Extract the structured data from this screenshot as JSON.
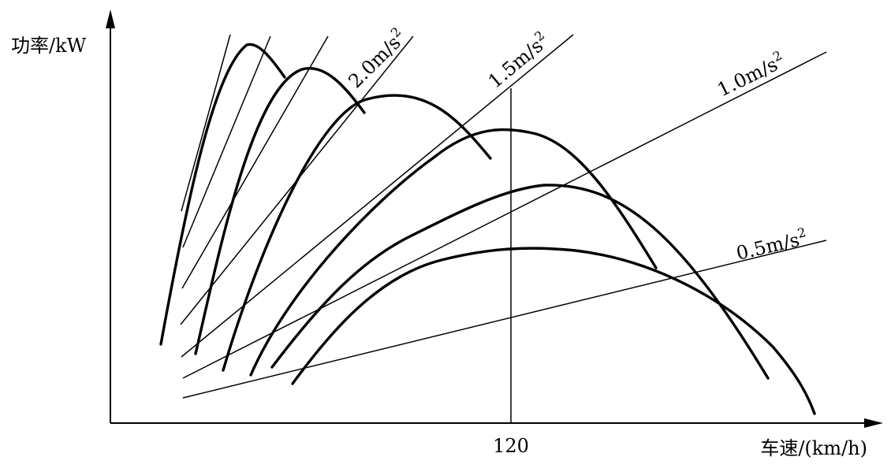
{
  "chart_data": {
    "type": "line",
    "title": "",
    "xlabel": "车速/(km/h)",
    "ylabel": "功率/kW",
    "x_ticks": [
      "120"
    ],
    "vertical_reference": {
      "x": 120,
      "label": "120"
    },
    "acceleration_lines": [
      {
        "base": "2.0m/s",
        "exp": "2"
      },
      {
        "base": "1.5m/s",
        "exp": "2"
      },
      {
        "base": "1.0m/s",
        "exp": "2"
      },
      {
        "base": "0.5m/s",
        "exp": "2"
      }
    ],
    "power_curves": 6,
    "grid": false,
    "legend": "none"
  }
}
